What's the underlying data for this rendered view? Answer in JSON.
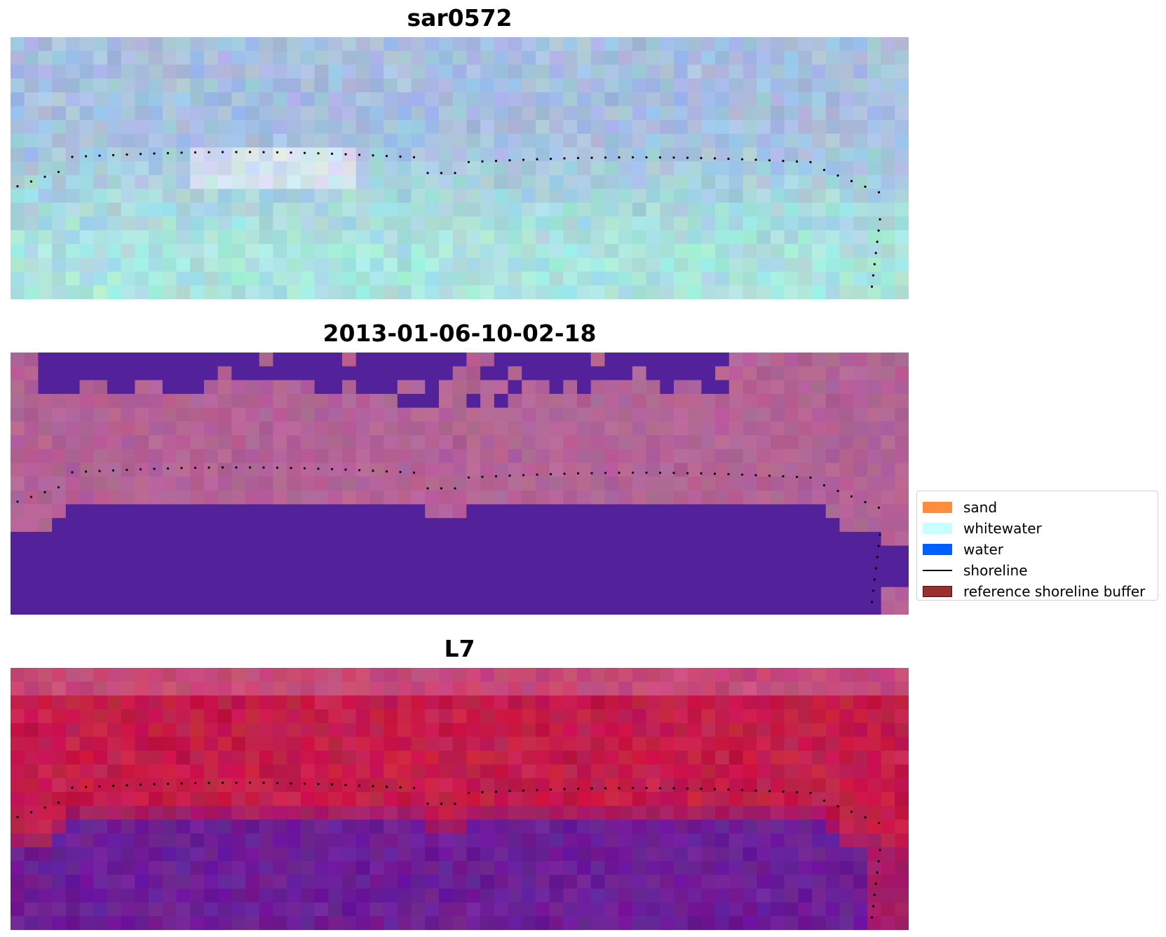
{
  "panels": [
    {
      "title": "sar0572",
      "palette": "sar"
    },
    {
      "title": "2013-01-06-10-02-18",
      "palette": "classified"
    },
    {
      "title": "L7",
      "palette": "l7"
    }
  ],
  "legend": {
    "items": [
      {
        "label": "sand",
        "kind": "patch",
        "color": "#ff8c3f"
      },
      {
        "label": "whitewater",
        "kind": "patch",
        "color": "#c8ffff"
      },
      {
        "label": "water",
        "kind": "patch",
        "color": "#0060ff"
      },
      {
        "label": "shoreline",
        "kind": "line",
        "color": "#000000"
      },
      {
        "label": "reference shoreline buffer",
        "kind": "patch",
        "color": "#9a2f2f"
      }
    ]
  },
  "colors": {
    "water_class": "#53229a",
    "background_pink": "#b26396",
    "sar_cyan": "#a9e4de",
    "sar_blue": "#a6bfe0",
    "l7_red": "#c31d4a",
    "l7_purple": "#6c1e96",
    "shoreline_dots": "#000000"
  }
}
